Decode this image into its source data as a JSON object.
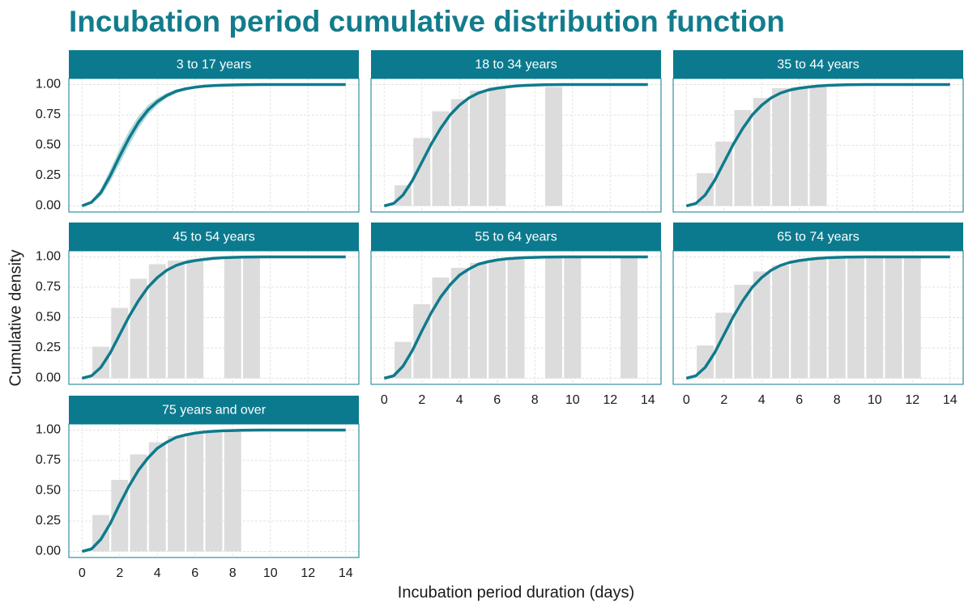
{
  "title": "Incubation period cumulative distribution function",
  "x_label": "Incubation period duration (days)",
  "y_label": "Cumulative density",
  "xlim": [
    -0.7,
    14.7
  ],
  "ylim": [
    -0.05,
    1.05
  ],
  "xticks": [
    0,
    2,
    4,
    6,
    8,
    10,
    12,
    14
  ],
  "yticks": [
    {
      "value": 0,
      "label": "0.00"
    },
    {
      "value": 0.25,
      "label": "0.25"
    },
    {
      "value": 0.5,
      "label": "0.50"
    },
    {
      "value": 0.75,
      "label": "0.75"
    },
    {
      "value": 1,
      "label": "1.00"
    }
  ],
  "grid": true,
  "strip_color": "#0b7a8e",
  "bar_color": "#dcdcdc",
  "line_color": "#0f7a8c",
  "ribbon_color": "#a9d3d8",
  "chart_data": [
    {
      "type": "bar",
      "title": "3 to 17 years",
      "bars": {
        "x": [],
        "values": []
      },
      "curve": {
        "x": [
          0,
          0.5,
          1,
          1.5,
          2,
          2.5,
          3,
          3.5,
          4,
          4.5,
          5,
          5.5,
          6,
          6.5,
          7,
          7.5,
          8,
          8.5,
          9,
          9.5,
          10,
          10.5,
          11,
          11.5,
          12,
          12.5,
          13,
          13.5,
          14
        ],
        "values": [
          0,
          0.03,
          0.11,
          0.25,
          0.41,
          0.56,
          0.69,
          0.79,
          0.86,
          0.91,
          0.945,
          0.965,
          0.978,
          0.987,
          0.992,
          0.995,
          0.997,
          0.998,
          0.999,
          1,
          1,
          1,
          1,
          1,
          1,
          1,
          1,
          1,
          1
        ],
        "lower": [
          0,
          0.02,
          0.08,
          0.2,
          0.35,
          0.5,
          0.64,
          0.75,
          0.83,
          0.89,
          0.93,
          0.955,
          0.97,
          0.982,
          0.989,
          0.993,
          0.996,
          0.997,
          0.998,
          1,
          1,
          1,
          1,
          1,
          1,
          1,
          1,
          1,
          1
        ],
        "upper": [
          0,
          0.04,
          0.14,
          0.3,
          0.47,
          0.62,
          0.74,
          0.83,
          0.89,
          0.93,
          0.96,
          0.975,
          0.985,
          0.991,
          0.995,
          0.997,
          0.998,
          0.999,
          1,
          1,
          1,
          1,
          1,
          1,
          1,
          1,
          1,
          1,
          1
        ]
      }
    },
    {
      "type": "bar",
      "title": "18 to 34 years",
      "bars": {
        "x": [
          1,
          2,
          3,
          4,
          5,
          6,
          9
        ],
        "values": [
          0.17,
          0.56,
          0.78,
          0.88,
          0.95,
          0.98,
          0.98
        ]
      },
      "curve": {
        "x": [
          0,
          0.5,
          1,
          1.5,
          2,
          2.5,
          3,
          3.5,
          4,
          4.5,
          5,
          5.5,
          6,
          6.5,
          7,
          7.5,
          8,
          8.5,
          9,
          9.5,
          10,
          10.5,
          11,
          11.5,
          12,
          12.5,
          13,
          13.5,
          14
        ],
        "values": [
          0,
          0.02,
          0.09,
          0.21,
          0.36,
          0.51,
          0.64,
          0.75,
          0.83,
          0.89,
          0.93,
          0.955,
          0.97,
          0.98,
          0.988,
          0.993,
          0.996,
          0.998,
          0.999,
          1,
          1,
          1,
          1,
          1,
          1,
          1,
          1,
          1,
          1
        ]
      }
    },
    {
      "type": "bar",
      "title": "35 to 44 years",
      "bars": {
        "x": [
          1,
          2,
          3,
          4,
          5,
          6,
          7
        ],
        "values": [
          0.27,
          0.53,
          0.79,
          0.89,
          0.97,
          0.98,
          0.99
        ]
      },
      "curve": {
        "x": [
          0,
          0.5,
          1,
          1.5,
          2,
          2.5,
          3,
          3.5,
          4,
          4.5,
          5,
          5.5,
          6,
          6.5,
          7,
          7.5,
          8,
          8.5,
          9,
          9.5,
          10,
          10.5,
          11,
          11.5,
          12,
          12.5,
          13,
          13.5,
          14
        ],
        "values": [
          0,
          0.02,
          0.09,
          0.21,
          0.36,
          0.51,
          0.64,
          0.75,
          0.83,
          0.89,
          0.93,
          0.955,
          0.97,
          0.98,
          0.988,
          0.993,
          0.996,
          0.998,
          0.999,
          1,
          1,
          1,
          1,
          1,
          1,
          1,
          1,
          1,
          1
        ]
      }
    },
    {
      "type": "bar",
      "title": "45 to 54 years",
      "bars": {
        "x": [
          1,
          2,
          3,
          4,
          5,
          6,
          8,
          9
        ],
        "values": [
          0.26,
          0.58,
          0.82,
          0.94,
          0.97,
          0.98,
          1,
          1
        ]
      },
      "curve": {
        "x": [
          0,
          0.5,
          1,
          1.5,
          2,
          2.5,
          3,
          3.5,
          4,
          4.5,
          5,
          5.5,
          6,
          6.5,
          7,
          7.5,
          8,
          8.5,
          9,
          9.5,
          10,
          10.5,
          11,
          11.5,
          12,
          12.5,
          13,
          13.5,
          14
        ],
        "values": [
          0,
          0.02,
          0.09,
          0.21,
          0.36,
          0.51,
          0.64,
          0.75,
          0.83,
          0.89,
          0.93,
          0.955,
          0.97,
          0.98,
          0.988,
          0.993,
          0.996,
          0.998,
          0.999,
          1,
          1,
          1,
          1,
          1,
          1,
          1,
          1,
          1,
          1
        ]
      }
    },
    {
      "type": "bar",
      "title": "55 to 64 years",
      "bars": {
        "x": [
          1,
          2,
          3,
          4,
          5,
          6,
          7,
          9,
          10,
          13
        ],
        "values": [
          0.3,
          0.61,
          0.83,
          0.91,
          0.95,
          0.97,
          0.98,
          1,
          1,
          1
        ]
      },
      "curve": {
        "x": [
          0,
          0.5,
          1,
          1.5,
          2,
          2.5,
          3,
          3.5,
          4,
          4.5,
          5,
          5.5,
          6,
          6.5,
          7,
          7.5,
          8,
          8.5,
          9,
          9.5,
          10,
          10.5,
          11,
          11.5,
          12,
          12.5,
          13,
          13.5,
          14
        ],
        "values": [
          0,
          0.02,
          0.1,
          0.23,
          0.39,
          0.54,
          0.67,
          0.77,
          0.85,
          0.9,
          0.94,
          0.96,
          0.975,
          0.984,
          0.99,
          0.994,
          0.996,
          0.998,
          0.999,
          1,
          1,
          1,
          1,
          1,
          1,
          1,
          1,
          1,
          1
        ]
      }
    },
    {
      "type": "bar",
      "title": "65 to 74 years",
      "bars": {
        "x": [
          1,
          2,
          3,
          4,
          5,
          6,
          7,
          8,
          9,
          10,
          11,
          12
        ],
        "values": [
          0.27,
          0.54,
          0.77,
          0.88,
          0.93,
          0.97,
          0.98,
          0.99,
          0.99,
          1,
          1,
          1
        ]
      },
      "curve": {
        "x": [
          0,
          0.5,
          1,
          1.5,
          2,
          2.5,
          3,
          3.5,
          4,
          4.5,
          5,
          5.5,
          6,
          6.5,
          7,
          7.5,
          8,
          8.5,
          9,
          9.5,
          10,
          10.5,
          11,
          11.5,
          12,
          12.5,
          13,
          13.5,
          14
        ],
        "values": [
          0,
          0.02,
          0.09,
          0.21,
          0.36,
          0.51,
          0.64,
          0.75,
          0.83,
          0.89,
          0.93,
          0.955,
          0.97,
          0.98,
          0.988,
          0.993,
          0.996,
          0.998,
          0.999,
          1,
          1,
          1,
          1,
          1,
          1,
          1,
          1,
          1,
          1
        ]
      }
    },
    {
      "type": "bar",
      "title": "75 years and over",
      "bars": {
        "x": [
          1,
          2,
          3,
          4,
          5,
          6,
          7,
          8
        ],
        "values": [
          0.3,
          0.59,
          0.8,
          0.9,
          0.95,
          0.97,
          0.98,
          0.99
        ]
      },
      "curve": {
        "x": [
          0,
          0.5,
          1,
          1.5,
          2,
          2.5,
          3,
          3.5,
          4,
          4.5,
          5,
          5.5,
          6,
          6.5,
          7,
          7.5,
          8,
          8.5,
          9,
          9.5,
          10,
          10.5,
          11,
          11.5,
          12,
          12.5,
          13,
          13.5,
          14
        ],
        "values": [
          0,
          0.02,
          0.1,
          0.23,
          0.39,
          0.54,
          0.67,
          0.77,
          0.85,
          0.9,
          0.94,
          0.96,
          0.975,
          0.984,
          0.99,
          0.994,
          0.996,
          0.998,
          0.999,
          1,
          1,
          1,
          1,
          1,
          1,
          1,
          1,
          1,
          1
        ]
      }
    }
  ]
}
